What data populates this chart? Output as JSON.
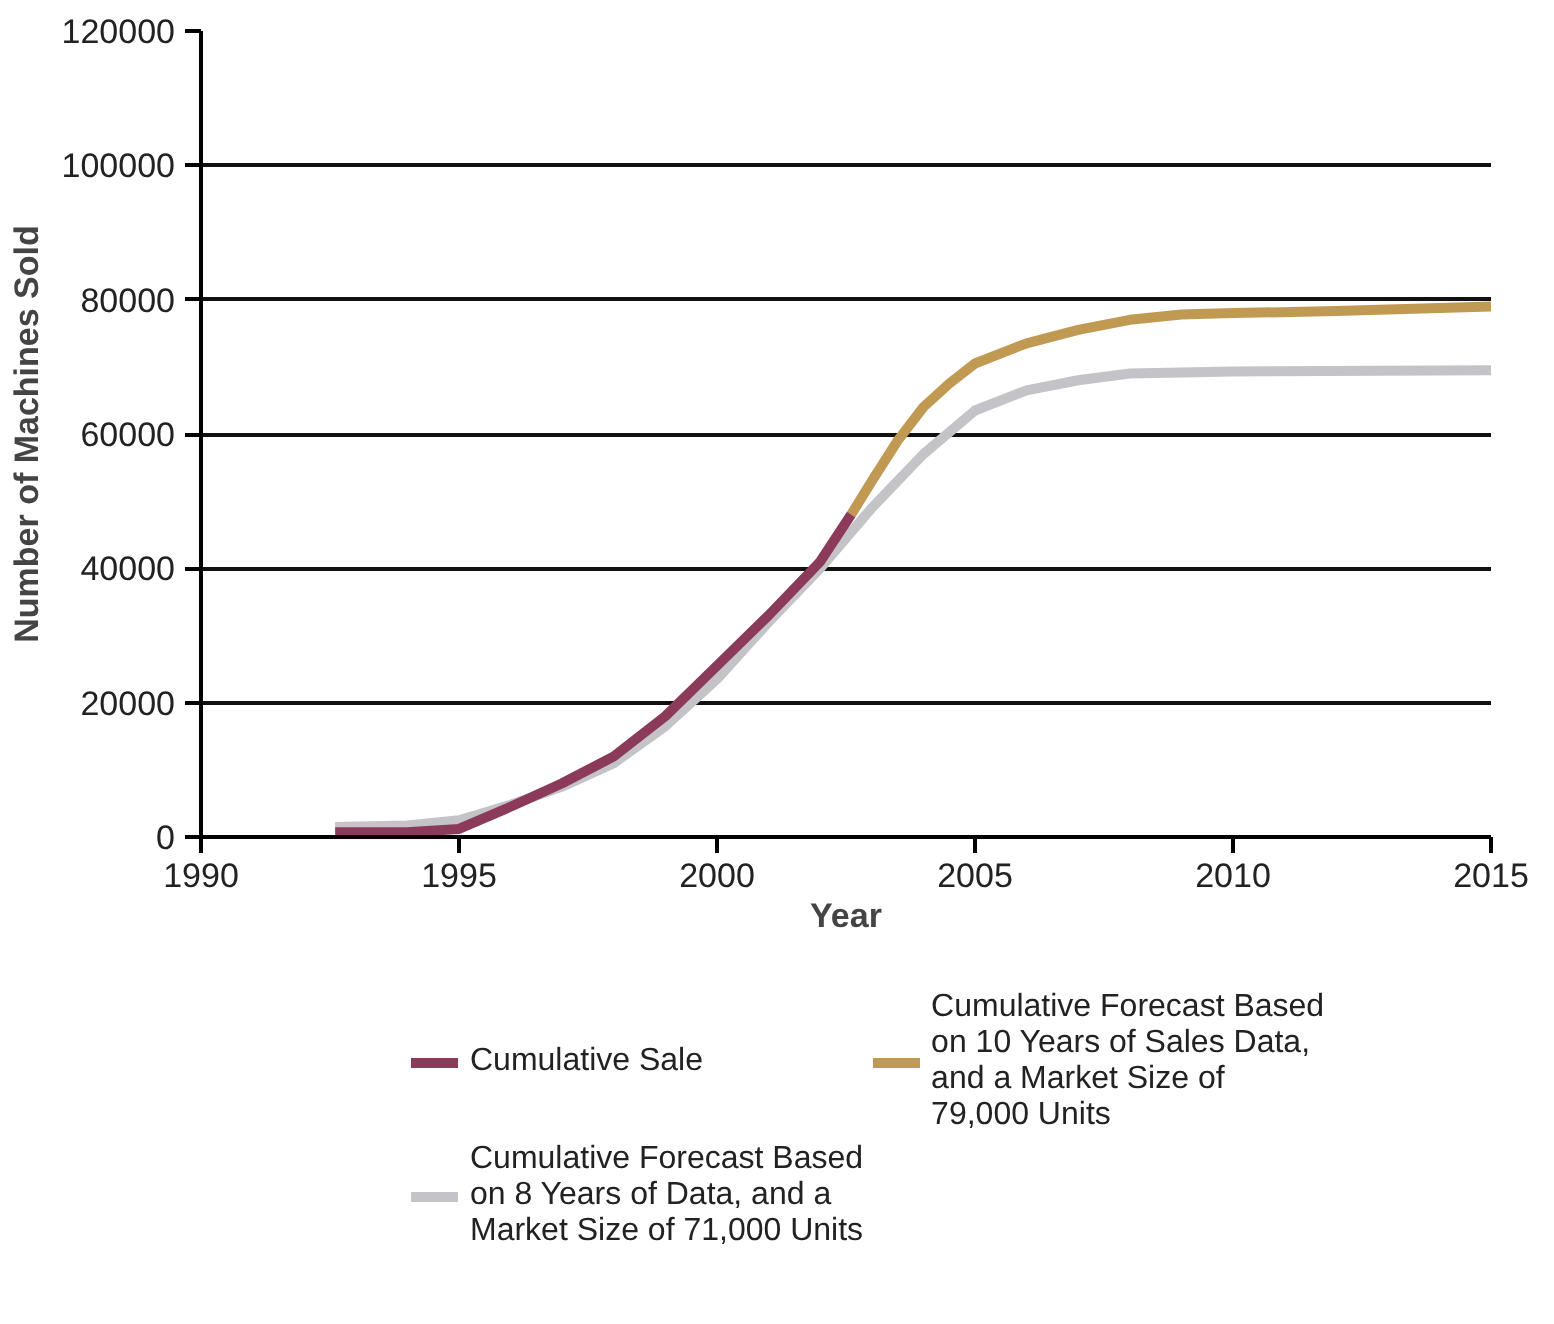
{
  "chart_data": {
    "type": "line",
    "xlabel": "Year",
    "ylabel": "Number of Machines Sold",
    "xlim": [
      1990,
      2015
    ],
    "xticks": [
      1990,
      1995,
      2000,
      2005,
      2010,
      2015
    ],
    "ylim": [
      0,
      120000
    ],
    "yticks": [
      0,
      20000,
      40000,
      60000,
      80000,
      100000,
      120000
    ],
    "grid": "y",
    "legend": "bottom",
    "line_style": "solid",
    "series": [
      {
        "name": "Cumulative Sale",
        "color": "#8b3a5a",
        "x": [
          1992.6,
          1994,
          1995,
          1996,
          1997,
          1998,
          1999,
          2000,
          2001,
          2002,
          2002.6
        ],
        "values": [
          700,
          700,
          1200,
          4500,
          8000,
          12000,
          18000,
          25500,
          33000,
          41000,
          48000
        ]
      },
      {
        "name": "Cumulative Forecast Based\non 10 Years of Sales Data,\nand a Market Size of\n79,000 Units",
        "color": "#c09a52",
        "x": [
          2002.6,
          2003,
          2003.5,
          2004,
          2004.5,
          2005,
          2006,
          2007,
          2008,
          2009,
          2010,
          2012,
          2015
        ],
        "values": [
          48000,
          53000,
          59000,
          64000,
          67500,
          70500,
          73500,
          75500,
          77000,
          77800,
          78000,
          78300,
          79000
        ]
      },
      {
        "name": "Cumulative Forecast Based\non 8 Years of Data, and a\nMarket Size of 71,000 Units",
        "color": "#c4c3c8",
        "x": [
          1992.6,
          1994,
          1995,
          1996,
          1997,
          1998,
          1999,
          2000,
          2001,
          2002,
          2003,
          2004,
          2005,
          2006,
          2007,
          2008,
          2010,
          2015
        ],
        "values": [
          1500,
          1700,
          2500,
          4800,
          7500,
          11000,
          16500,
          23500,
          32000,
          40000,
          49000,
          57000,
          63500,
          66500,
          68000,
          69000,
          69300,
          69500
        ]
      }
    ]
  }
}
